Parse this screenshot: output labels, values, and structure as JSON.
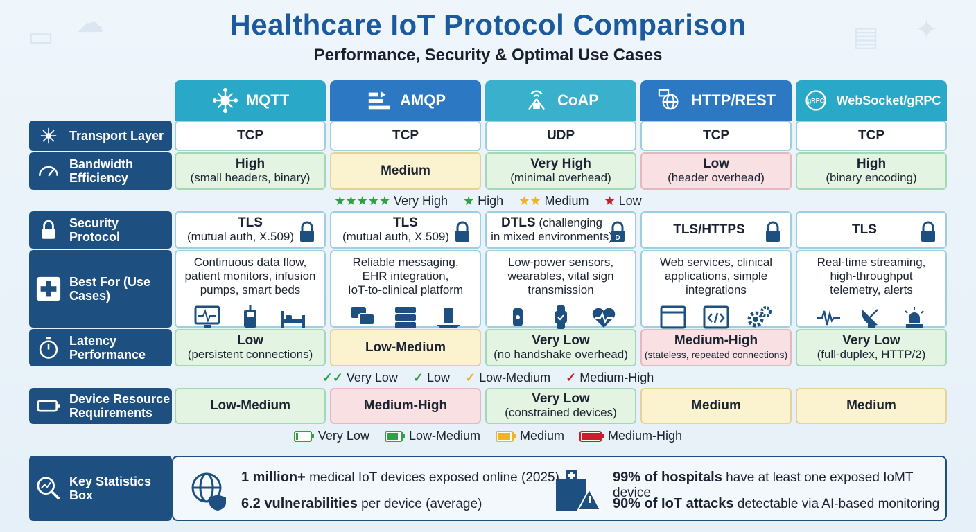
{
  "title": "Healthcare IoT Protocol Comparison",
  "subtitle": "Performance, Security & Optimal Use Cases",
  "protocols": [
    {
      "name": "MQTT",
      "color": "#2aa8c8",
      "icon": "hub-icon"
    },
    {
      "name": "AMQP",
      "color": "#2c78c3",
      "icon": "queue-icon"
    },
    {
      "name": "CoAP",
      "color": "#3ab0cc",
      "icon": "sensor-icon"
    },
    {
      "name": "HTTP/REST",
      "color": "#2c78c3",
      "icon": "globe-icon"
    },
    {
      "name": "WebSocket/gRPC",
      "color": "#2aa8c8",
      "icon": "grpc-icon",
      "badge": "gRPC"
    }
  ],
  "rows": {
    "transport": {
      "label": "Transport Layer",
      "cells": [
        "TCP",
        "TCP",
        "UDP",
        "TCP",
        "TCP"
      ]
    },
    "bandwidth": {
      "label": "Bandwidth Efficiency",
      "cells": [
        {
          "main": "High",
          "sub": "(small headers, binary)",
          "rating": "high"
        },
        {
          "main": "Medium",
          "sub": "",
          "rating": "medium"
        },
        {
          "main": "Very High",
          "sub": "(minimal overhead)",
          "rating": "very-high"
        },
        {
          "main": "Low",
          "sub": "(header overhead)",
          "rating": "low"
        },
        {
          "main": "High",
          "sub": "(binary encoding)",
          "rating": "high"
        }
      ]
    },
    "security": {
      "label": "Security Protocol",
      "cells": [
        {
          "main": "TLS",
          "sub": "(mutual auth, X.509)"
        },
        {
          "main": "TLS",
          "sub": "(mutual auth, X.509)"
        },
        {
          "main": "DTLS",
          "sub_inline": "(challenging",
          "sub": "in mixed environments)"
        },
        {
          "main": "TLS/HTTPS",
          "sub": ""
        },
        {
          "main": "TLS",
          "sub": ""
        }
      ]
    },
    "bestfor": {
      "label": "Best For (Use Cases)",
      "cells": [
        {
          "lines": [
            "Continuous data flow,",
            "patient monitors, infusion",
            "pumps, smart beds"
          ]
        },
        {
          "lines": [
            "Reliable messaging,",
            "EHR integration,",
            "IoT-to-clinical platform"
          ]
        },
        {
          "lines": [
            "Low-power sensors,",
            "wearables, vital sign",
            "transmission"
          ]
        },
        {
          "lines": [
            "Web services, clinical",
            "applications, simple",
            "integrations"
          ]
        },
        {
          "lines": [
            "Real-time streaming,",
            "high-throughput",
            "telemetry, alerts"
          ]
        }
      ]
    },
    "latency": {
      "label": "Latency Performance",
      "cells": [
        {
          "main": "Low",
          "sub": "(persistent connections)",
          "rating": "low"
        },
        {
          "main": "Low-Medium",
          "sub": "",
          "rating": "low-medium"
        },
        {
          "main": "Very Low",
          "sub": "(no handshake overhead)",
          "rating": "very-low"
        },
        {
          "main": "Medium-High",
          "sub": "(stateless, repeated connections)",
          "rating": "medium-high"
        },
        {
          "main": "Very Low",
          "sub": "(full-duplex, HTTP/2)",
          "rating": "very-low"
        }
      ]
    },
    "resources": {
      "label": "Device Resource Requirements",
      "cells": [
        {
          "main": "Low-Medium",
          "sub": ""
        },
        {
          "main": "Medium-High",
          "sub": ""
        },
        {
          "main": "Very Low",
          "sub": "(constrained devices)"
        },
        {
          "main": "Medium",
          "sub": ""
        },
        {
          "main": "Medium",
          "sub": ""
        }
      ]
    }
  },
  "legends": {
    "bandwidth": [
      {
        "symbol": "★★★★★",
        "label": "Very High",
        "color": "#2fa043"
      },
      {
        "symbol": "★",
        "label": "High",
        "color": "#2fa043"
      },
      {
        "symbol": "★★",
        "label": "Medium",
        "color": "#f0b323"
      },
      {
        "symbol": "★",
        "label": "Low",
        "color": "#c8202a"
      }
    ],
    "latency": [
      {
        "symbol": "✓✓",
        "label": "Very Low",
        "color": "#2fa043"
      },
      {
        "symbol": "✓",
        "label": "Low",
        "color": "#2fa043"
      },
      {
        "symbol": "✓",
        "label": "Low-Medium",
        "color": "#f0b323"
      },
      {
        "symbol": "✓",
        "label": "Medium-High",
        "color": "#c8202a"
      }
    ],
    "resources": [
      {
        "label": "Very Low",
        "color": "#2fa043",
        "fill": 0.1
      },
      {
        "label": "Low-Medium",
        "color": "#2fa043",
        "fill": 0.75
      },
      {
        "label": "Medium",
        "color": "#f0b323",
        "fill": 0.85
      },
      {
        "label": "Medium-High",
        "color": "#c8202a",
        "fill": 1.0
      }
    ]
  },
  "stats": {
    "label": "Key Statistics Box",
    "items": [
      {
        "bold": "1 million+",
        "rest": " medical IoT devices exposed online (2025)"
      },
      {
        "bold": "6.2 vulnerabilities",
        "rest": " per device (average)"
      },
      {
        "bold": "99% of hospitals",
        "rest": " have at least one exposed IoMT device"
      },
      {
        "bold": "90% of IoT attacks",
        "rest": " detectable via AI-based monitoring"
      }
    ]
  }
}
